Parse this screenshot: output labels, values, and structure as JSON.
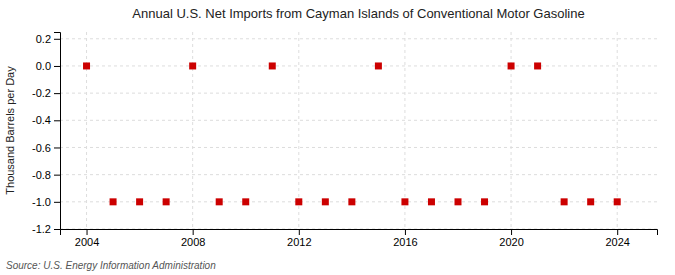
{
  "chart_data": {
    "type": "scatter",
    "title": "Annual U.S. Net Imports from Cayman Islands of Conventional Motor Gasoline",
    "ylabel": "Thousand Barrels per Day",
    "source": "Source: U.S. Energy Information Administration",
    "x": [
      2004,
      2005,
      2006,
      2007,
      2008,
      2009,
      2010,
      2011,
      2012,
      2013,
      2014,
      2015,
      2016,
      2017,
      2018,
      2019,
      2020,
      2021,
      2022,
      2023,
      2024
    ],
    "values": [
      0.0,
      -1.0,
      -1.0,
      -1.0,
      0.0,
      -1.0,
      -1.0,
      0.0,
      -1.0,
      -1.0,
      -1.0,
      0.0,
      -1.0,
      -1.0,
      -1.0,
      -1.0,
      0.0,
      0.0,
      -1.0,
      -1.0,
      -1.0
    ],
    "color": "#cc0000",
    "marker": "square",
    "xlim": [
      2003.0,
      2025.5
    ],
    "ylim": [
      -1.2,
      0.25
    ],
    "xticks": [
      2004,
      2008,
      2012,
      2016,
      2020,
      2024
    ],
    "yticks": [
      0.2,
      {
        "value": 0.0,
        "label": "0.0"
      },
      -0.2,
      -0.4,
      -0.6,
      -0.8,
      {
        "value": -1.0,
        "label": "-1.0"
      },
      -1.2
    ],
    "grid": true
  }
}
